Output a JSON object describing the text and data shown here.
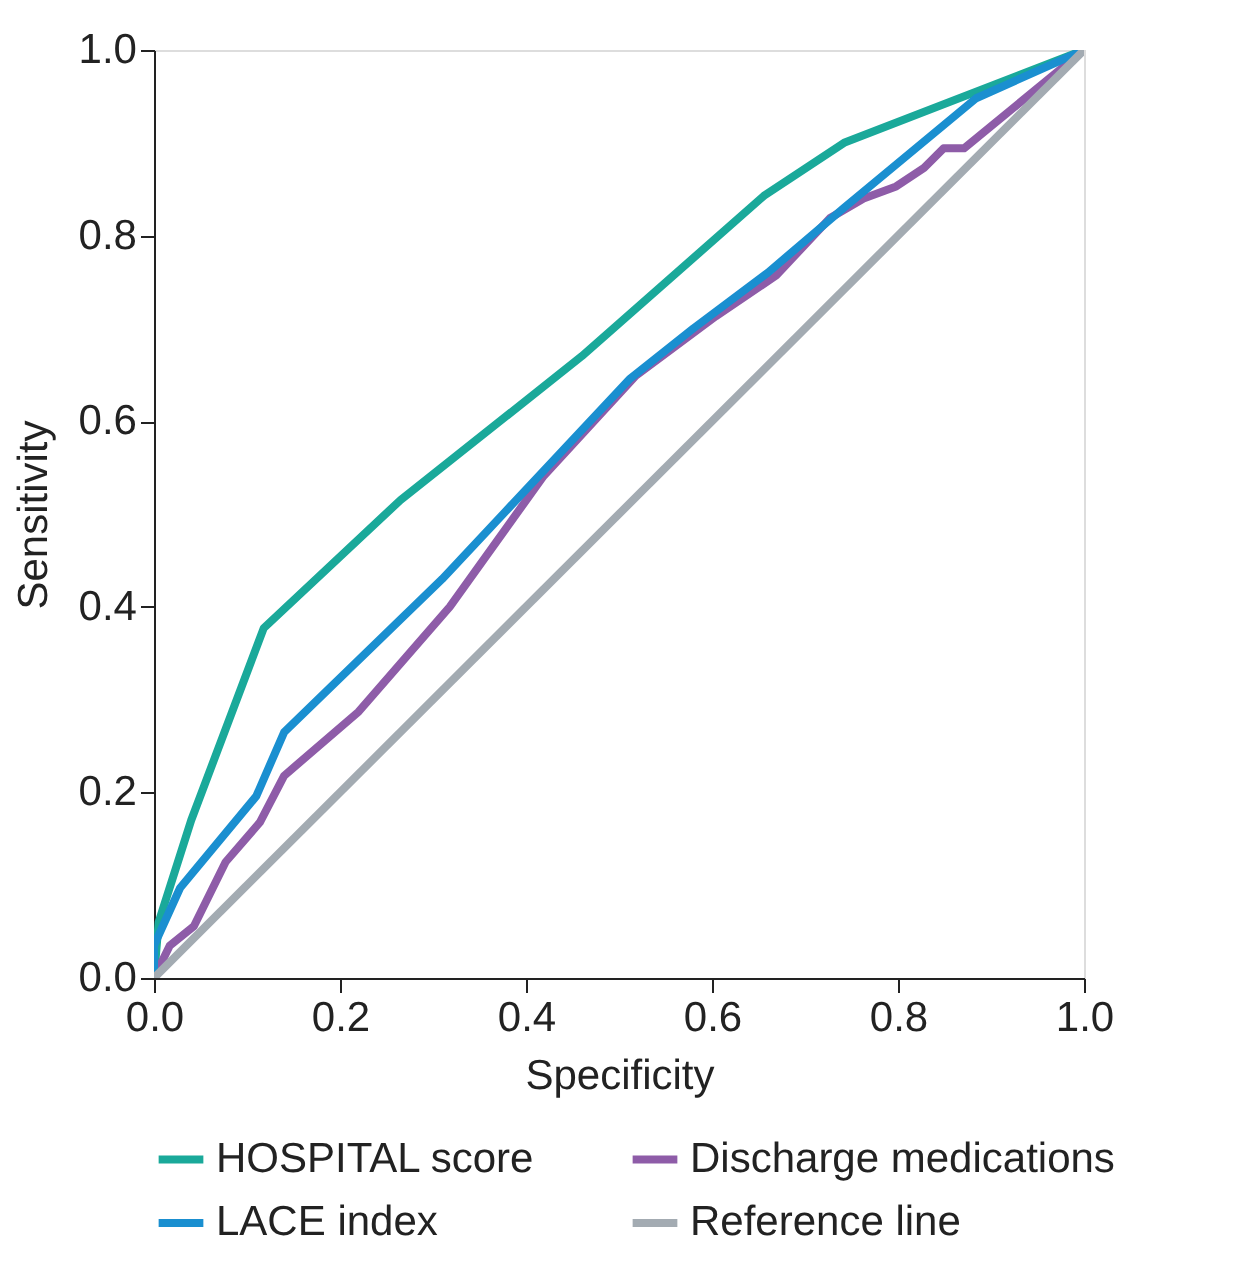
{
  "chart_data": {
    "type": "line",
    "xlabel": "Specificity",
    "ylabel": "Sensitivity",
    "xlim": [
      0,
      1
    ],
    "ylim": [
      0,
      1
    ],
    "xticks": [
      {
        "value": 0,
        "label": "0.0"
      },
      {
        "value": 0.2,
        "label": "0.2"
      },
      {
        "value": 0.4,
        "label": "0.4"
      },
      {
        "value": 0.6,
        "label": "0.6"
      },
      {
        "value": 0.8,
        "label": "0.8"
      },
      {
        "value": 1,
        "label": "1.0"
      }
    ],
    "yticks": [
      {
        "value": 0,
        "label": "0.0"
      },
      {
        "value": 0.2,
        "label": "0.2"
      },
      {
        "value": 0.4,
        "label": "0.4"
      },
      {
        "value": 0.6,
        "label": "0.6"
      },
      {
        "value": 0.8,
        "label": "0.8"
      },
      {
        "value": 1,
        "label": "1.0"
      }
    ],
    "grid": false,
    "legend": "bottom",
    "marker": "none",
    "line_style": "solid",
    "series": [
      {
        "name": "HOSPITAL score",
        "color": "#1aa99a",
        "x": [
          0,
          0.005,
          0.04,
          0.118,
          0.265,
          0.46,
          0.656,
          0.742,
          1
        ],
        "values": [
          0,
          0.06,
          0.17,
          0.377,
          0.515,
          0.67,
          0.843,
          0.9,
          1
        ]
      },
      {
        "name": "Discharge medications",
        "color": "#8e5ca8",
        "x": [
          0,
          0.017,
          0.043,
          0.077,
          0.114,
          0.14,
          0.22,
          0.318,
          0.419,
          0.518,
          0.604,
          0.669,
          0.727,
          0.763,
          0.798,
          0.828,
          0.849,
          0.871,
          1
        ],
        "values": [
          0,
          0.035,
          0.056,
          0.125,
          0.168,
          0.218,
          0.287,
          0.4,
          0.541,
          0.649,
          0.713,
          0.757,
          0.819,
          0.84,
          0.853,
          0.873,
          0.894,
          0.894,
          1
        ]
      },
      {
        "name": "LACE index",
        "color": "#1a8fd0",
        "x": [
          0,
          0,
          0.028,
          0.11,
          0.14,
          0.31,
          0.512,
          0.58,
          0.66,
          0.742,
          0.884,
          1
        ],
        "values": [
          0,
          0.035,
          0.097,
          0.196,
          0.265,
          0.43,
          0.646,
          0.7,
          0.76,
          0.83,
          0.948,
          1
        ]
      },
      {
        "name": "Reference line",
        "color": "#a3abb2",
        "x": [
          0,
          1
        ],
        "values": [
          0,
          1
        ]
      }
    ]
  }
}
